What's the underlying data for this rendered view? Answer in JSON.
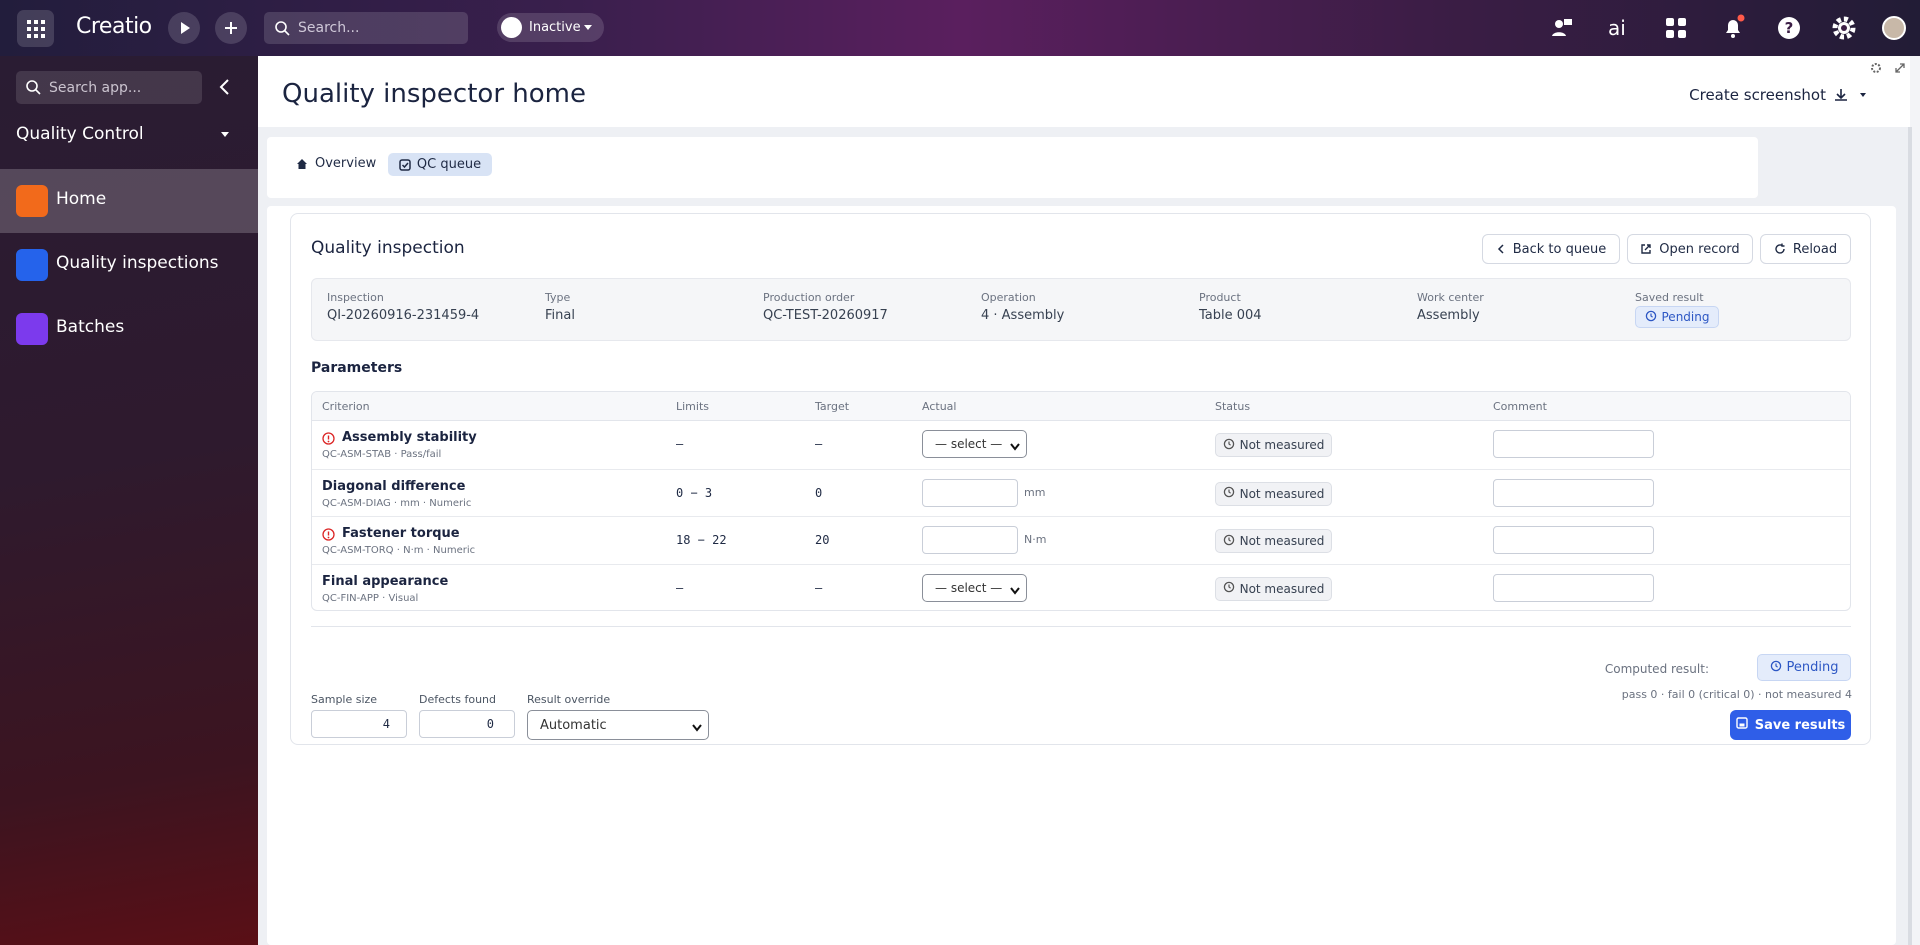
{
  "topbar": {
    "brand": "Creatio",
    "search_placeholder": "Search...",
    "status": "Inactive"
  },
  "sidebar": {
    "search_placeholder": "Search app...",
    "app": "Quality Control",
    "nav": [
      "Home",
      "Quality inspections",
      "Batches"
    ]
  },
  "header": {
    "title": "Quality inspector home",
    "action": "Create screenshot"
  },
  "tabs": [
    "Overview",
    "QC queue"
  ],
  "panel": {
    "title": "Quality inspection",
    "buttons": [
      "Back to queue",
      "Open record",
      "Reload"
    ],
    "fields": [
      {
        "label": "Inspection",
        "value": "QI-20260916-231459-4"
      },
      {
        "label": "Type",
        "value": "Final"
      },
      {
        "label": "Production order",
        "value": "QC-TEST-20260917"
      },
      {
        "label": "Operation",
        "value": "4 · Assembly"
      },
      {
        "label": "Product",
        "value": "Table 004"
      },
      {
        "label": "Work center",
        "value": "Assembly"
      },
      {
        "label": "Saved result",
        "value": "Pending"
      }
    ],
    "parameters_title": "Parameters",
    "table": {
      "columns": [
        "Criterion",
        "Limits",
        "Target",
        "Actual",
        "Status",
        "Comment"
      ],
      "rows": [
        {
          "name": "Assembly stability",
          "code": "QC-ASM-STAB · Pass/fail",
          "critical": true,
          "limits": "–",
          "target": "–",
          "actual": "— select —",
          "status": "Not measured"
        },
        {
          "name": "Diagonal difference",
          "code": "QC-ASM-DIAG · mm · Numeric",
          "critical": false,
          "limits": "0 − 3",
          "target": "0",
          "unit": "mm",
          "status": "Not measured"
        },
        {
          "name": "Fastener torque",
          "code": "QC-ASM-TORQ · N·m · Numeric",
          "critical": true,
          "limits": "18 − 22",
          "target": "20",
          "unit": "N·m",
          "status": "Not measured"
        },
        {
          "name": "Final appearance",
          "code": "QC-FIN-APP · Visual",
          "critical": false,
          "limits": "–",
          "target": "–",
          "actual": "— select —",
          "status": "Not measured"
        }
      ]
    },
    "footer": {
      "fields": [
        {
          "label": "Sample size",
          "value": "4"
        },
        {
          "label": "Defects found",
          "value": "0"
        },
        {
          "label": "Result override",
          "value": "Automatic"
        }
      ],
      "computed_label": "Computed result:",
      "computed_value": "Pending",
      "summary": "pass 0 · fail 0 (critical 0) · not measured 4",
      "save": "Save results"
    }
  }
}
